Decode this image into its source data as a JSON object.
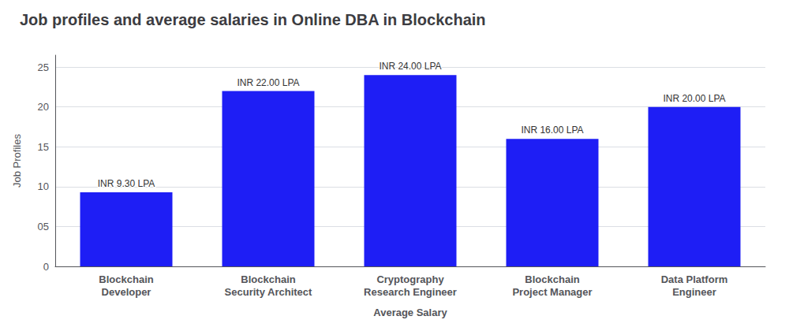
{
  "chart_data": {
    "type": "bar",
    "title": "Job profiles and average salaries in Online DBA in Blockchain",
    "xlabel": "Average Salary",
    "ylabel": "Job Profiles",
    "categories": [
      "Blockchain\nDeveloper",
      "Blockchain\nSecurity Architect",
      "Cryptography\nResearch Engineer",
      "Blockchain\nProject Manager",
      "Data Platform\nEngineer"
    ],
    "values": [
      9.3,
      22.0,
      24.0,
      16.0,
      20.0
    ],
    "value_labels": [
      "INR 9.30 LPA",
      "INR 22.00 LPA",
      "INR 24.00 LPA",
      "INR 16.00 LPA",
      "INR 20.00 LPA"
    ],
    "data_labels": true,
    "color": "#1e1ef5",
    "ylim": [
      0,
      26.5
    ],
    "yticks": [
      0,
      {
        "value": 5,
        "label": "05"
      },
      10,
      15,
      20,
      25
    ],
    "grid": true
  }
}
